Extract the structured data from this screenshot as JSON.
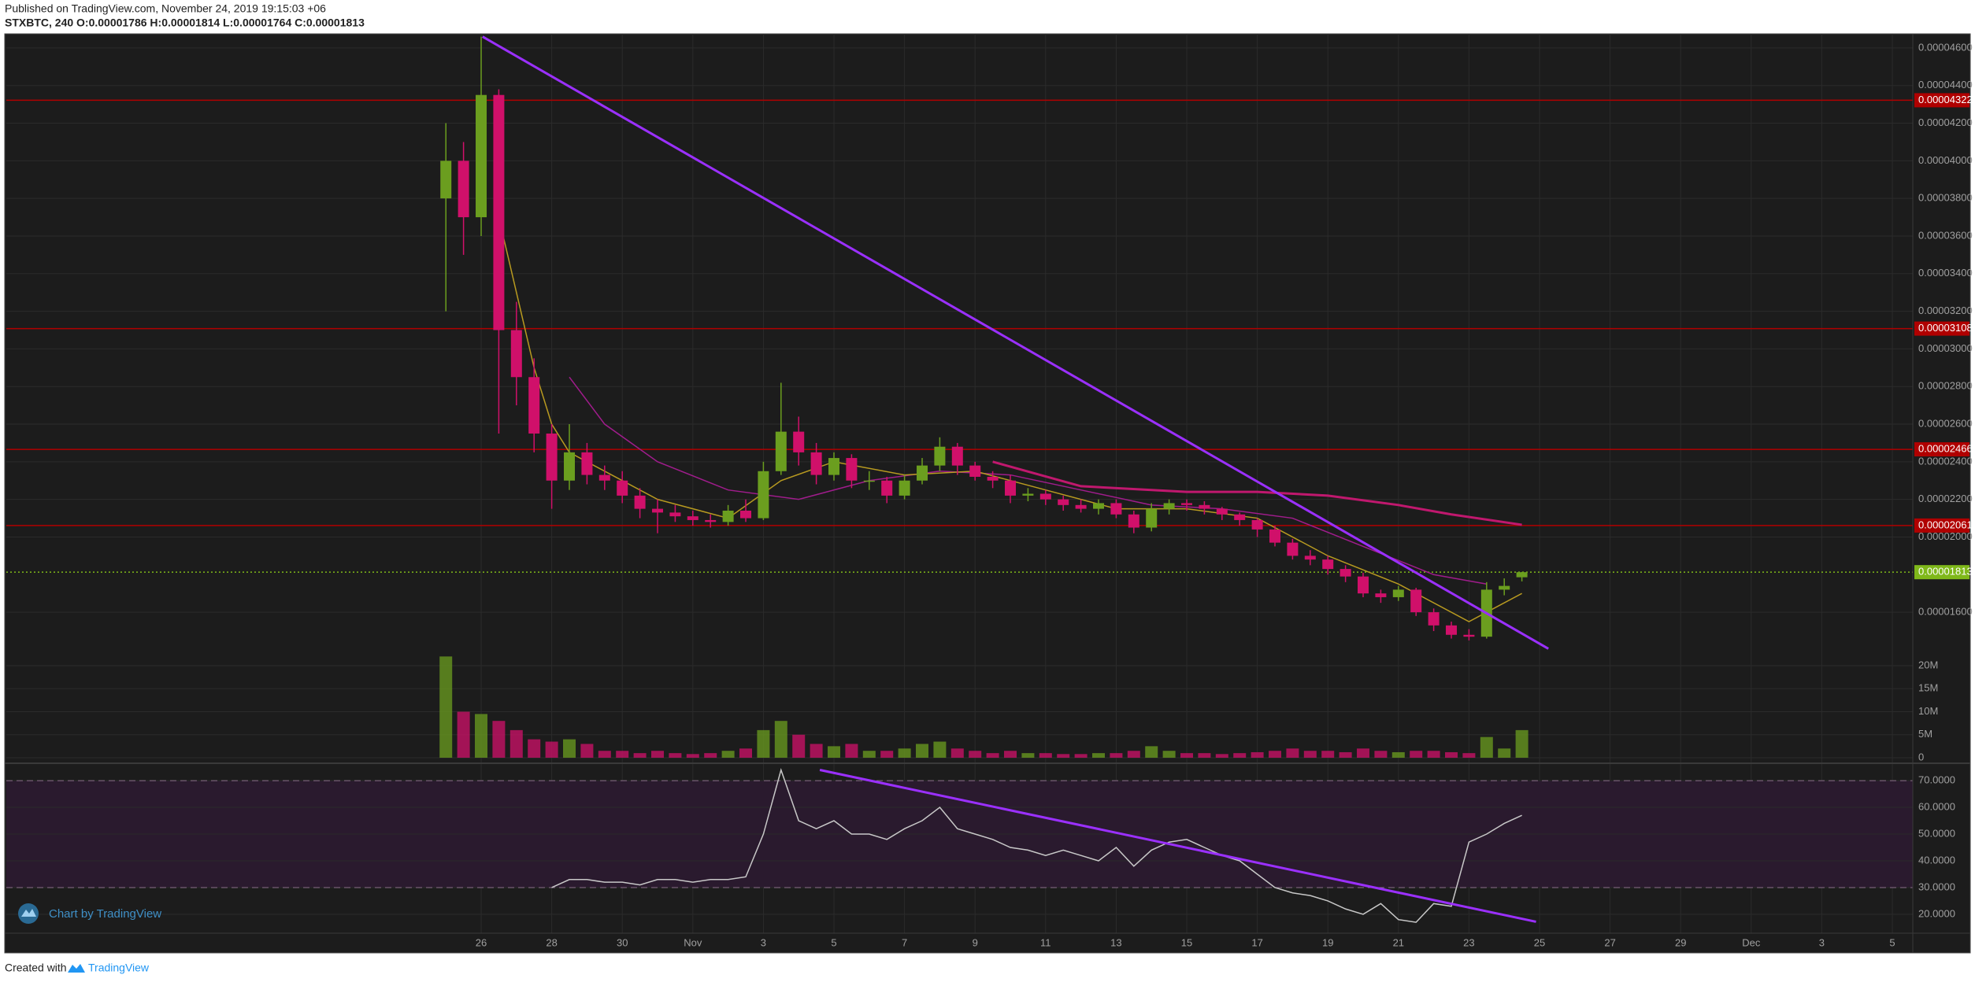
{
  "header": {
    "published": "Published on TradingView.com, November 24, 2019 19:15:03 +06",
    "symbol": "STXBTC, 240  O:0.00001786 H:0.00001814 L:0.00001764 C:0.00001813"
  },
  "footer": {
    "watermark": "Chart by TradingView",
    "created": "Created with",
    "brand": "TradingView"
  },
  "chart_data": {
    "type": "candlestick",
    "x": [
      25,
      25.5,
      26,
      26.5,
      27,
      27.5,
      28,
      28.5,
      29,
      29.5,
      30,
      30.5,
      31,
      31.5,
      32,
      32.5,
      33,
      33.5,
      34,
      34.5,
      35,
      35.5,
      36,
      36.5,
      37,
      37.5,
      38,
      38.5,
      39,
      39.5,
      40,
      40.5,
      41,
      41.5,
      42,
      42.5,
      43,
      43.5,
      44,
      44.5,
      45,
      45.5,
      46,
      46.5,
      47,
      47.5,
      48,
      48.5,
      49,
      49.5,
      50,
      50.5,
      51,
      51.5,
      52,
      52.5,
      53,
      53.5,
      54,
      54.5,
      55,
      55.5
    ],
    "open": [
      3.8e-05,
      4e-05,
      3.7e-05,
      4.35e-05,
      3.1e-05,
      2.85e-05,
      2.55e-05,
      2.3e-05,
      2.45e-05,
      2.33e-05,
      2.3e-05,
      2.22e-05,
      2.15e-05,
      2.13e-05,
      2.11e-05,
      2.09e-05,
      2.08e-05,
      2.14e-05,
      2.1e-05,
      2.35e-05,
      2.56e-05,
      2.45e-05,
      2.33e-05,
      2.42e-05,
      2.3e-05,
      2.3e-05,
      2.22e-05,
      2.3e-05,
      2.38e-05,
      2.48e-05,
      2.38e-05,
      2.32e-05,
      2.3e-05,
      2.22e-05,
      2.23e-05,
      2.2e-05,
      2.17e-05,
      2.15e-05,
      2.18e-05,
      2.12e-05,
      2.05e-05,
      2.15e-05,
      2.18e-05,
      2.17e-05,
      2.15e-05,
      2.12e-05,
      2.09e-05,
      2.04e-05,
      1.97e-05,
      1.9e-05,
      1.88e-05,
      1.83e-05,
      1.79e-05,
      1.7e-05,
      1.68e-05,
      1.72e-05,
      1.6e-05,
      1.53e-05,
      1.48e-05,
      1.47e-05,
      1.72e-05,
      1.786e-05
    ],
    "high": [
      4.2e-05,
      4.1e-05,
      4.66e-05,
      4.38e-05,
      3.25e-05,
      2.95e-05,
      2.6e-05,
      2.6e-05,
      2.5e-05,
      2.38e-05,
      2.35e-05,
      2.26e-05,
      2.2e-05,
      2.17e-05,
      2.14e-05,
      2.12e-05,
      2.17e-05,
      2.2e-05,
      2.4e-05,
      2.82e-05,
      2.64e-05,
      2.5e-05,
      2.45e-05,
      2.44e-05,
      2.35e-05,
      2.32e-05,
      2.33e-05,
      2.42e-05,
      2.53e-05,
      2.5e-05,
      2.4e-05,
      2.35e-05,
      2.33e-05,
      2.26e-05,
      2.25e-05,
      2.22e-05,
      2.2e-05,
      2.2e-05,
      2.2e-05,
      2.14e-05,
      2.18e-05,
      2.2e-05,
      2.2e-05,
      2.19e-05,
      2.16e-05,
      2.13e-05,
      2.1e-05,
      2.06e-05,
      1.99e-05,
      1.93e-05,
      1.9e-05,
      1.85e-05,
      1.81e-05,
      1.72e-05,
      1.74e-05,
      1.73e-05,
      1.62e-05,
      1.55e-05,
      1.51e-05,
      1.76e-05,
      1.78e-05,
      1.814e-05
    ],
    "low": [
      3.2e-05,
      3.5e-05,
      3.6e-05,
      2.55e-05,
      2.7e-05,
      2.45e-05,
      2.15e-05,
      2.25e-05,
      2.28e-05,
      2.25e-05,
      2.18e-05,
      2.1e-05,
      2.02e-05,
      2.08e-05,
      2.06e-05,
      2.05e-05,
      2.06e-05,
      2.08e-05,
      2.09e-05,
      2.33e-05,
      2.38e-05,
      2.28e-05,
      2.3e-05,
      2.26e-05,
      2.25e-05,
      2.18e-05,
      2.2e-05,
      2.28e-05,
      2.35e-05,
      2.33e-05,
      2.3e-05,
      2.26e-05,
      2.18e-05,
      2.19e-05,
      2.17e-05,
      2.14e-05,
      2.13e-05,
      2.12e-05,
      2.1e-05,
      2.02e-05,
      2.03e-05,
      2.12e-05,
      2.14e-05,
      2.12e-05,
      2.09e-05,
      2.06e-05,
      2e-05,
      1.95e-05,
      1.88e-05,
      1.85e-05,
      1.8e-05,
      1.76e-05,
      1.68e-05,
      1.65e-05,
      1.66e-05,
      1.58e-05,
      1.5e-05,
      1.46e-05,
      1.45e-05,
      1.46e-05,
      1.69e-05,
      1.764e-05
    ],
    "close": [
      4e-05,
      3.7e-05,
      4.35e-05,
      3.1e-05,
      2.85e-05,
      2.55e-05,
      2.3e-05,
      2.45e-05,
      2.33e-05,
      2.3e-05,
      2.22e-05,
      2.15e-05,
      2.13e-05,
      2.11e-05,
      2.09e-05,
      2.08e-05,
      2.14e-05,
      2.1e-05,
      2.35e-05,
      2.56e-05,
      2.45e-05,
      2.33e-05,
      2.42e-05,
      2.3e-05,
      2.3e-05,
      2.22e-05,
      2.3e-05,
      2.38e-05,
      2.48e-05,
      2.38e-05,
      2.32e-05,
      2.3e-05,
      2.22e-05,
      2.23e-05,
      2.2e-05,
      2.17e-05,
      2.15e-05,
      2.18e-05,
      2.12e-05,
      2.05e-05,
      2.15e-05,
      2.18e-05,
      2.17e-05,
      2.15e-05,
      2.12e-05,
      2.09e-05,
      2.04e-05,
      1.97e-05,
      1.9e-05,
      1.88e-05,
      1.83e-05,
      1.79e-05,
      1.7e-05,
      1.68e-05,
      1.72e-05,
      1.6e-05,
      1.53e-05,
      1.48e-05,
      1.47e-05,
      1.72e-05,
      1.74e-05,
      1.813e-05
    ],
    "volume": [
      22000000,
      10000000,
      9500000,
      8000000,
      6000000,
      4000000,
      3500000,
      4000000,
      3000000,
      1500000,
      1500000,
      1000000,
      1500000,
      1000000,
      800000,
      1000000,
      1500000,
      2000000,
      6000000,
      8000000,
      5000000,
      3000000,
      2500000,
      3000000,
      1500000,
      1500000,
      2000000,
      3000000,
      3500000,
      2000000,
      1500000,
      1000000,
      1500000,
      1000000,
      1000000,
      800000,
      800000,
      1000000,
      1000000,
      1500000,
      2500000,
      1500000,
      1000000,
      1000000,
      800000,
      1000000,
      1200000,
      1500000,
      2000000,
      1500000,
      1500000,
      1200000,
      2000000,
      1500000,
      1200000,
      1500000,
      1500000,
      1200000,
      1000000,
      4500000,
      2000000,
      6000000
    ],
    "rsi": [
      null,
      null,
      null,
      null,
      null,
      null,
      30,
      33,
      33,
      32,
      32,
      31,
      33,
      33,
      32,
      33,
      33,
      34,
      50,
      74,
      55,
      52,
      55,
      50,
      50,
      48,
      52,
      55,
      60,
      52,
      50,
      48,
      45,
      44,
      42,
      44,
      42,
      40,
      45,
      38,
      44,
      47,
      48,
      45,
      42,
      40,
      35,
      30,
      28,
      27,
      25,
      22,
      20,
      24,
      18,
      17,
      24,
      23,
      47,
      50,
      54,
      57
    ],
    "up_color": "#6b9e1f",
    "down_color": "#d0106a",
    "xlim": [
      12.54,
      66.58
    ],
    "xticks": [
      26,
      28,
      30,
      {
        "value": 32,
        "label": "Nov"
      },
      {
        "value": 34,
        "label": "3"
      },
      {
        "value": 36,
        "label": "5"
      },
      {
        "value": 38,
        "label": "7"
      },
      {
        "value": 40,
        "label": "9"
      },
      {
        "value": 42,
        "label": "11"
      },
      {
        "value": 44,
        "label": "13"
      },
      {
        "value": 46,
        "label": "15"
      },
      {
        "value": 48,
        "label": "17"
      },
      {
        "value": 50,
        "label": "19"
      },
      {
        "value": 52,
        "label": "21"
      },
      {
        "value": 54,
        "label": "23"
      },
      {
        "value": 56,
        "label": "25"
      },
      {
        "value": 58,
        "label": "27"
      },
      {
        "value": 60,
        "label": "29"
      },
      {
        "value": 62,
        "label": "Dec"
      },
      {
        "value": 64,
        "label": "3"
      },
      {
        "value": 66,
        "label": "5"
      }
    ],
    "ylim": [
      1.387e-05,
      4.675e-05
    ],
    "yticks": [
      {
        "value": 4.6e-05,
        "label": "0.00004600"
      },
      {
        "value": 4.4e-05,
        "label": "0.00004400"
      },
      {
        "value": 4.2e-05,
        "label": "0.00004200"
      },
      {
        "value": 4e-05,
        "label": "0.00004000"
      },
      {
        "value": 3.8e-05,
        "label": "0.00003800"
      },
      {
        "value": 3.6e-05,
        "label": "0.00003600"
      },
      {
        "value": 3.4e-05,
        "label": "0.00003400"
      },
      {
        "value": 3.2e-05,
        "label": "0.00003200"
      },
      {
        "value": 3e-05,
        "label": "0.00003000"
      },
      {
        "value": 2.8e-05,
        "label": "0.00002800"
      },
      {
        "value": 2.6e-05,
        "label": "0.00002600"
      },
      {
        "value": 2.4e-05,
        "label": "0.00002400"
      },
      {
        "value": 2.2e-05,
        "label": "0.00002200"
      },
      {
        "value": 2e-05,
        "label": "0.00002000"
      },
      {
        "value": 1.6e-05,
        "label": "0.00001600"
      }
    ],
    "volume_ylim": [
      -1200000,
      22050000
    ],
    "volume_yticks": [
      0,
      {
        "value": 5000000,
        "label": "5M"
      },
      {
        "value": 10000000,
        "label": "10M"
      },
      {
        "value": 15000000,
        "label": "15M"
      },
      {
        "value": 20000000,
        "label": "20M"
      }
    ],
    "rsi_ylim": [
      13.5,
      76.5
    ],
    "rsi_yticks": [
      {
        "value": 70,
        "label": "70.0000"
      },
      {
        "value": 60,
        "label": "60.0000"
      },
      {
        "value": 50,
        "label": "50.0000"
      },
      {
        "value": 40,
        "label": "40.0000"
      },
      {
        "value": 30,
        "label": "30.0000"
      },
      {
        "value": 20,
        "label": "20.0000"
      }
    ],
    "rsi_band": [
      30,
      70
    ],
    "grid": true,
    "hlines": [
      {
        "value": 4.322e-05,
        "label": "0.00004322",
        "color": "#b00000",
        "style": "solid"
      },
      {
        "value": 3.108e-05,
        "label": "0.00003108",
        "color": "#b00000",
        "style": "solid"
      },
      {
        "value": 2.466e-05,
        "label": "0.00002466",
        "color": "#b00000",
        "style": "solid"
      },
      {
        "value": 2.061e-05,
        "label": "0.00002061",
        "color": "#b00000",
        "style": "solid"
      },
      {
        "value": 1.813e-05,
        "label": "0.00001813",
        "color": "#7fb81a",
        "style": "dotted"
      }
    ],
    "lines": [
      {
        "color": "#c0186e",
        "width": 3,
        "x": [
          40.5,
          43,
          46,
          48,
          50,
          52,
          53.5,
          55.5
        ],
        "values": [
          2.4e-05,
          2.27e-05,
          2.24e-05,
          2.24e-05,
          2.22e-05,
          2.17e-05,
          2.12e-05,
          2.065e-05
        ]
      },
      {
        "color": "#a01c8c",
        "width": 1.5,
        "x": [
          28.5,
          29.5,
          31,
          33,
          35,
          37,
          39,
          41,
          43,
          45,
          47,
          49,
          51,
          53,
          54.5
        ],
        "values": [
          2.85e-05,
          2.6e-05,
          2.4e-05,
          2.25e-05,
          2.2e-05,
          2.3e-05,
          2.35e-05,
          2.33e-05,
          2.25e-05,
          2.17e-05,
          2.15e-05,
          2.1e-05,
          1.95e-05,
          1.8e-05,
          1.75e-05
        ]
      },
      {
        "color": "#b89a20",
        "width": 1.5,
        "x": [
          26.5,
          27,
          27.5,
          28,
          28.5,
          29.5,
          31,
          33,
          34.5,
          36,
          38,
          40,
          42,
          44,
          46,
          48,
          50,
          52,
          54,
          55.5
        ],
        "values": [
          3.7e-05,
          3.3e-05,
          2.9e-05,
          2.6e-05,
          2.45e-05,
          2.35e-05,
          2.2e-05,
          2.1e-05,
          2.3e-05,
          2.4e-05,
          2.33e-05,
          2.35e-05,
          2.25e-05,
          2.15e-05,
          2.15e-05,
          2.1e-05,
          1.9e-05,
          1.75e-05,
          1.55e-05,
          1.7e-05
        ]
      }
    ],
    "trendlines": [
      {
        "color": "#9b30ff",
        "x": [
          26.04,
          56.25
        ],
        "values": [
          4.66e-05,
          1.406e-05
        ]
      }
    ],
    "rsi_color": "#c8c8c8",
    "rsi_trendlines": [
      {
        "color": "#9b30ff",
        "x": [
          35.6,
          55.9
        ],
        "values": [
          74,
          17.2
        ]
      }
    ]
  }
}
